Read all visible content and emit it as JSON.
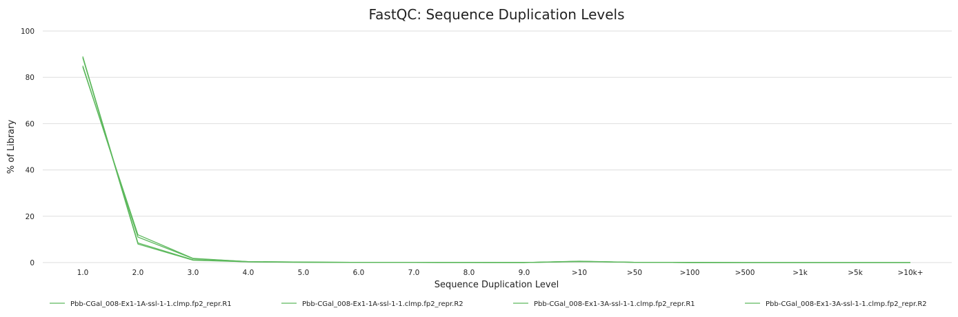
{
  "chart_data": {
    "type": "line",
    "title": "FastQC: Sequence Duplication Levels",
    "xlabel": "Sequence Duplication Level",
    "ylabel": "% of Library",
    "categories": [
      "1.0",
      "2.0",
      "3.0",
      "4.0",
      "5.0",
      "6.0",
      "7.0",
      "8.0",
      "9.0",
      ">10",
      ">50",
      ">100",
      ">500",
      ">1k",
      ">5k",
      ">10k+"
    ],
    "ylim": [
      0,
      100
    ],
    "yticks": [
      "0",
      "20",
      "40",
      "60",
      "80",
      "100"
    ],
    "grid": true,
    "legend_position": "bottom",
    "series": [
      {
        "name": "Pbb-CGal_008-Ex1-1A-ssl-1-1.clmp.fp2_repr.R1",
        "color": "#5cb85c",
        "values": [
          84.5,
          12.0,
          1.8,
          0.4,
          0.2,
          0.1,
          0.05,
          0.03,
          0.02,
          0.5,
          0.1,
          0.02,
          0,
          0,
          0,
          0
        ]
      },
      {
        "name": "Pbb-CGal_008-Ex1-1A-ssl-1-1.clmp.fp2_repr.R2",
        "color": "#5cb85c",
        "values": [
          89.0,
          8.5,
          1.2,
          0.3,
          0.1,
          0.05,
          0.03,
          0.02,
          0.01,
          0.4,
          0.1,
          0.02,
          0,
          0,
          0,
          0
        ]
      },
      {
        "name": "Pbb-CGal_008-Ex1-3A-ssl-1-1.clmp.fp2_repr.R1",
        "color": "#5cb85c",
        "values": [
          85.0,
          11.0,
          1.7,
          0.4,
          0.2,
          0.1,
          0.05,
          0.03,
          0.02,
          0.6,
          0.1,
          0.02,
          0,
          0,
          0,
          0
        ]
      },
      {
        "name": "Pbb-CGal_008-Ex1-3A-ssl-1-1.clmp.fp2_repr.R2",
        "color": "#5cb85c",
        "values": [
          88.5,
          8.0,
          1.0,
          0.3,
          0.1,
          0.05,
          0.03,
          0.02,
          0.01,
          0.5,
          0.1,
          0.02,
          0,
          0,
          0,
          0
        ]
      }
    ]
  }
}
